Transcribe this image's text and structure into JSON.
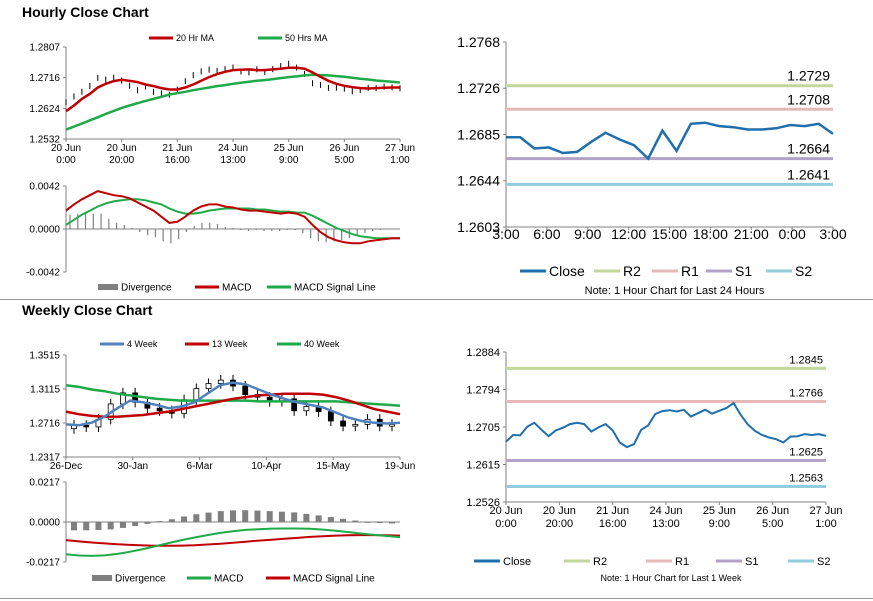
{
  "hourly_title": "Hourly Close Chart",
  "weekly_title": "Weekly Close Chart",
  "colors": {
    "ma_short": "#c00000",
    "ma_long": "#1faa4a",
    "macd": "#c00000",
    "signal": "#1faa4a",
    "divergence": "#7f7f7f",
    "close": "#1f6fad",
    "r2": "#c3d69b",
    "r1": "#e6b9b8",
    "s1": "#b3a2c7",
    "s2": "#93cddd",
    "candle": "#000000",
    "w4": "#4f81bd"
  },
  "chart_data": [
    {
      "id": "hourly_price",
      "type": "line",
      "title": "",
      "xlabel": "",
      "ylabel": "",
      "x_tick_labels": [
        [
          "20 Jun",
          "0:00"
        ],
        [
          "20 Jun",
          "20:00"
        ],
        [
          "21 Jun",
          "16:00"
        ],
        [
          "24 Jun",
          "13:00"
        ],
        [
          "25 Jun",
          "9:00"
        ],
        [
          "26 Jun",
          "5:00"
        ],
        [
          "27 Jun",
          "1:00"
        ]
      ],
      "y_tick_labels": [
        "1.2807",
        "1.2716",
        "1.2624",
        "1.2532"
      ],
      "ylim": [
        1.2532,
        1.2807
      ],
      "legend": [
        "20 Hr MA",
        "50 Hrs MA"
      ],
      "series": [
        {
          "name": "Price",
          "values": [
            1.2645,
            1.266,
            1.2672,
            1.2693,
            1.2715,
            1.2708,
            1.2717,
            1.2706,
            1.2689,
            1.2679,
            1.2688,
            1.2676,
            1.2669,
            1.2663,
            1.2682,
            1.2705,
            1.2721,
            1.2736,
            1.2739,
            1.2733,
            1.2742,
            1.2745,
            1.2737,
            1.2732,
            1.2739,
            1.2735,
            1.2741,
            1.2748,
            1.2759,
            1.2745,
            1.2724,
            1.27,
            1.2693,
            1.2688,
            1.2686,
            1.2681,
            1.2677,
            1.2679,
            1.2683,
            1.2686,
            1.2688,
            1.2684,
            1.2685
          ]
        },
        {
          "name": "20 Hr MA",
          "values": [
            1.2615,
            1.2632,
            1.2652,
            1.2667,
            1.2686,
            1.2697,
            1.2705,
            1.2709,
            1.2706,
            1.2702,
            1.2695,
            1.269,
            1.2684,
            1.268,
            1.268,
            1.2686,
            1.2695,
            1.2706,
            1.2717,
            1.2726,
            1.2733,
            1.2738,
            1.2739,
            1.274,
            1.2738,
            1.2738,
            1.274,
            1.2742,
            1.2745,
            1.2745,
            1.2742,
            1.2731,
            1.2718,
            1.2706,
            1.2697,
            1.2691,
            1.2687,
            1.2684,
            1.2683,
            1.2684,
            1.2685,
            1.2686,
            1.2686
          ]
        },
        {
          "name": "50 Hrs MA",
          "values": [
            1.256,
            1.2569,
            1.2578,
            1.2588,
            1.2597,
            1.2607,
            1.2616,
            1.2625,
            1.2632,
            1.2639,
            1.2646,
            1.2652,
            1.2658,
            1.2665,
            1.2669,
            1.2673,
            1.2678,
            1.2682,
            1.2686,
            1.269,
            1.2693,
            1.2697,
            1.27,
            1.2703,
            1.2706,
            1.2708,
            1.2711,
            1.2714,
            1.2717,
            1.2719,
            1.2722,
            1.2724,
            1.2723,
            1.2722,
            1.272,
            1.2718,
            1.2715,
            1.2712,
            1.271,
            1.2707,
            1.2705,
            1.2703,
            1.2701
          ]
        }
      ]
    },
    {
      "id": "hourly_macd",
      "type": "line",
      "y_tick_labels": [
        "0.0042",
        "0.0000",
        "-0.0042"
      ],
      "ylim": [
        -0.0042,
        0.0042
      ],
      "legend": [
        "Divergence",
        "MACD",
        "MACD Signal Line"
      ],
      "series": [
        {
          "name": "MACD",
          "values": [
            0.0018,
            0.0024,
            0.0029,
            0.0033,
            0.0037,
            0.0035,
            0.0033,
            0.0032,
            0.003,
            0.0026,
            0.0022,
            0.0018,
            0.0012,
            0.0006,
            0.0007,
            0.0012,
            0.0018,
            0.0022,
            0.0024,
            0.0024,
            0.0022,
            0.0021,
            0.0019,
            0.0018,
            0.0018,
            0.0017,
            0.0016,
            0.0015,
            0.0016,
            0.0015,
            0.0012,
            0.0004,
            -0.0003,
            -0.0008,
            -0.0011,
            -0.0013,
            -0.0014,
            -0.0014,
            -0.0012,
            -0.0011,
            -0.001,
            -0.0009,
            -0.0009
          ]
        },
        {
          "name": "MACD Signal Line",
          "values": [
            0.0004,
            0.0009,
            0.0014,
            0.0018,
            0.0022,
            0.0025,
            0.0027,
            0.0028,
            0.0029,
            0.0029,
            0.0028,
            0.0026,
            0.0024,
            0.002,
            0.0017,
            0.0015,
            0.0015,
            0.0016,
            0.0018,
            0.0019,
            0.002,
            0.002,
            0.002,
            0.002,
            0.0019,
            0.0019,
            0.0018,
            0.0017,
            0.0017,
            0.0016,
            0.0016,
            0.0013,
            0.0009,
            0.0005,
            0.0001,
            -0.0002,
            -0.0005,
            -0.0007,
            -0.0008,
            -0.0009,
            -0.0009,
            -0.0009,
            -0.0009
          ]
        },
        {
          "name": "Divergence",
          "values": [
            0.0014,
            0.0015,
            0.0015,
            0.0015,
            0.0015,
            0.001,
            0.0006,
            0.0004,
            0.0001,
            -0.0003,
            -0.0006,
            -0.0008,
            -0.0012,
            -0.0014,
            -0.001,
            -0.0003,
            0.0003,
            0.0006,
            0.0006,
            0.0005,
            0.0002,
            0.0001,
            -0.0001,
            -0.0002,
            -0.0001,
            -0.0002,
            -0.0002,
            -0.0002,
            -0.0001,
            -0.0001,
            -0.0004,
            -0.0009,
            -0.0012,
            -0.0013,
            -0.0012,
            -0.0011,
            -0.0009,
            -0.0007,
            -0.0004,
            -0.0002,
            -0.0001,
            0,
            0
          ]
        }
      ]
    },
    {
      "id": "hourly_levels",
      "type": "line",
      "x_tick_labels": [
        "3:00",
        "6:00",
        "9:00",
        "12:00",
        "15:00",
        "18:00",
        "21:00",
        "0:00",
        "3:00"
      ],
      "y_tick_labels": [
        "1.2768",
        "1.2726",
        "1.2685",
        "1.2644",
        "1.2603"
      ],
      "ylim": [
        1.2603,
        1.2768
      ],
      "legend": [
        "Close",
        "R2",
        "R1",
        "S1",
        "S2"
      ],
      "note": "Note: 1 Hour Chart for Last 24 Hours",
      "levels": [
        {
          "name": "R2",
          "value": 1.2729,
          "label": "1.2729"
        },
        {
          "name": "R1",
          "value": 1.2708,
          "label": "1.2708"
        },
        {
          "name": "S1",
          "value": 1.2664,
          "label": "1.2664"
        },
        {
          "name": "S2",
          "value": 1.2641,
          "label": "1.2641"
        }
      ],
      "series": [
        {
          "name": "Close",
          "values": [
            1.2683,
            1.2683,
            1.2673,
            1.2674,
            1.2669,
            1.267,
            1.2679,
            1.2687,
            1.2681,
            1.2676,
            1.2664,
            1.2689,
            1.2671,
            1.2695,
            1.2696,
            1.2693,
            1.2692,
            1.269,
            1.269,
            1.2691,
            1.2694,
            1.2693,
            1.2695,
            1.2686
          ]
        }
      ]
    },
    {
      "id": "weekly_price",
      "type": "line",
      "x_tick_labels": [
        "26-Dec",
        "30-Jan",
        "6-Mar",
        "10-Apr",
        "15-May",
        "19-Jun"
      ],
      "y_tick_labels": [
        "1.3515",
        "1.3115",
        "1.2716",
        "1.2317"
      ],
      "ylim": [
        1.2317,
        1.3515
      ],
      "legend": [
        "4 Week",
        "13 Week",
        "40 Week"
      ],
      "series": [
        {
          "name": "Close",
          "values": [
            1.269,
            1.267,
            1.276,
            1.294,
            1.307,
            1.296,
            1.289,
            1.286,
            1.283,
            1.299,
            1.312,
            1.318,
            1.322,
            1.315,
            1.305,
            1.302,
            1.297,
            1.3,
            1.286,
            1.291,
            1.285,
            1.274,
            1.268,
            1.27,
            1.276,
            1.268,
            1.27
          ]
        },
        {
          "name": "4 Week",
          "values": [
            1.27,
            1.269,
            1.272,
            1.279,
            1.289,
            1.298,
            1.296,
            1.293,
            1.289,
            1.291,
            1.296,
            1.306,
            1.316,
            1.319,
            1.317,
            1.311,
            1.305,
            1.3,
            1.296,
            1.293,
            1.29,
            1.284,
            1.278,
            1.274,
            1.272,
            1.271,
            1.272
          ]
        },
        {
          "name": "13 Week",
          "values": [
            1.285,
            1.282,
            1.28,
            1.279,
            1.279,
            1.28,
            1.281,
            1.283,
            1.285,
            1.288,
            1.291,
            1.294,
            1.297,
            1.3,
            1.302,
            1.304,
            1.305,
            1.306,
            1.306,
            1.306,
            1.305,
            1.302,
            1.298,
            1.293,
            1.288,
            1.285,
            1.282
          ]
        },
        {
          "name": "40 Week",
          "values": [
            1.316,
            1.314,
            1.311,
            1.309,
            1.306,
            1.304,
            1.302,
            1.3,
            1.299,
            1.298,
            1.298,
            1.298,
            1.298,
            1.298,
            1.298,
            1.297,
            1.297,
            1.297,
            1.297,
            1.297,
            1.297,
            1.297,
            1.296,
            1.295,
            1.294,
            1.293,
            1.292
          ]
        }
      ]
    },
    {
      "id": "weekly_macd",
      "type": "line",
      "y_tick_labels": [
        "0.0217",
        "0.0000",
        "-0.0217"
      ],
      "ylim": [
        -0.0217,
        0.0217
      ],
      "legend": [
        "Divergence",
        "MACD",
        "MACD Signal Line"
      ],
      "series": [
        {
          "name": "MACD",
          "values": [
            -0.0175,
            -0.0182,
            -0.0184,
            -0.0181,
            -0.0173,
            -0.0161,
            -0.0147,
            -0.0131,
            -0.0114,
            -0.0098,
            -0.0084,
            -0.0071,
            -0.0059,
            -0.005,
            -0.0043,
            -0.0039,
            -0.0036,
            -0.0035,
            -0.0035,
            -0.0037,
            -0.0041,
            -0.0047,
            -0.0055,
            -0.0063,
            -0.007,
            -0.0076,
            -0.0082
          ]
        },
        {
          "name": "MACD Signal Line",
          "values": [
            -0.0098,
            -0.0105,
            -0.0111,
            -0.0116,
            -0.0121,
            -0.0124,
            -0.0127,
            -0.0129,
            -0.0129,
            -0.0128,
            -0.0126,
            -0.0122,
            -0.0118,
            -0.0113,
            -0.0107,
            -0.0101,
            -0.0096,
            -0.0091,
            -0.0086,
            -0.0081,
            -0.0077,
            -0.0074,
            -0.0072,
            -0.0071,
            -0.0071,
            -0.0072,
            -0.0074
          ]
        },
        {
          "name": "Divergence",
          "values": [
            -0.0045,
            -0.0045,
            -0.0043,
            -0.004,
            -0.0032,
            -0.0022,
            -0.001,
            0.0005,
            0.0015,
            0.003,
            0.0042,
            0.0051,
            0.0059,
            0.0063,
            0.0064,
            0.0062,
            0.0059,
            0.0056,
            0.0052,
            0.0044,
            0.0036,
            0.0027,
            0.0017,
            0.0008,
            0.0001,
            -0.0004,
            -0.0008
          ]
        }
      ]
    },
    {
      "id": "weekly_levels",
      "type": "line",
      "x_tick_labels": [
        [
          "20 Jun",
          "0:00"
        ],
        [
          "20 Jun",
          "20:00"
        ],
        [
          "21 Jun",
          "16:00"
        ],
        [
          "24 Jun",
          "13:00"
        ],
        [
          "25 Jun",
          "9:00"
        ],
        [
          "26 Jun",
          "5:00"
        ],
        [
          "27 Jun",
          "1:00"
        ]
      ],
      "y_tick_labels": [
        "1.2884",
        "1.2794",
        "1.2705",
        "1.2615",
        "1.2526"
      ],
      "ylim": [
        1.2526,
        1.2884
      ],
      "legend": [
        "Close",
        "R2",
        "R1",
        "S1",
        "S2"
      ],
      "note": "Note: 1 Hour Chart for Last 1 Week",
      "levels": [
        {
          "name": "R2",
          "value": 1.2845,
          "label": "1.2845"
        },
        {
          "name": "R1",
          "value": 1.2766,
          "label": "1.2766"
        },
        {
          "name": "S1",
          "value": 1.2625,
          "label": "1.2625"
        },
        {
          "name": "S2",
          "value": 1.2563,
          "label": "1.2563"
        }
      ],
      "series": [
        {
          "name": "Close",
          "values": [
            1.267,
            1.2686,
            1.2685,
            1.2706,
            1.2715,
            1.2698,
            1.2683,
            1.2697,
            1.2703,
            1.2712,
            1.2715,
            1.2712,
            1.2694,
            1.2704,
            1.2712,
            1.2697,
            1.2668,
            1.2657,
            1.2664,
            1.2698,
            1.2709,
            1.2736,
            1.2743,
            1.2745,
            1.2742,
            1.2746,
            1.273,
            1.2738,
            1.2746,
            1.2737,
            1.2744,
            1.275,
            1.2762,
            1.2734,
            1.2711,
            1.2696,
            1.2686,
            1.268,
            1.2676,
            1.2668,
            1.2682,
            1.2683,
            1.2688,
            1.2686,
            1.2688,
            1.2684
          ]
        }
      ]
    }
  ]
}
